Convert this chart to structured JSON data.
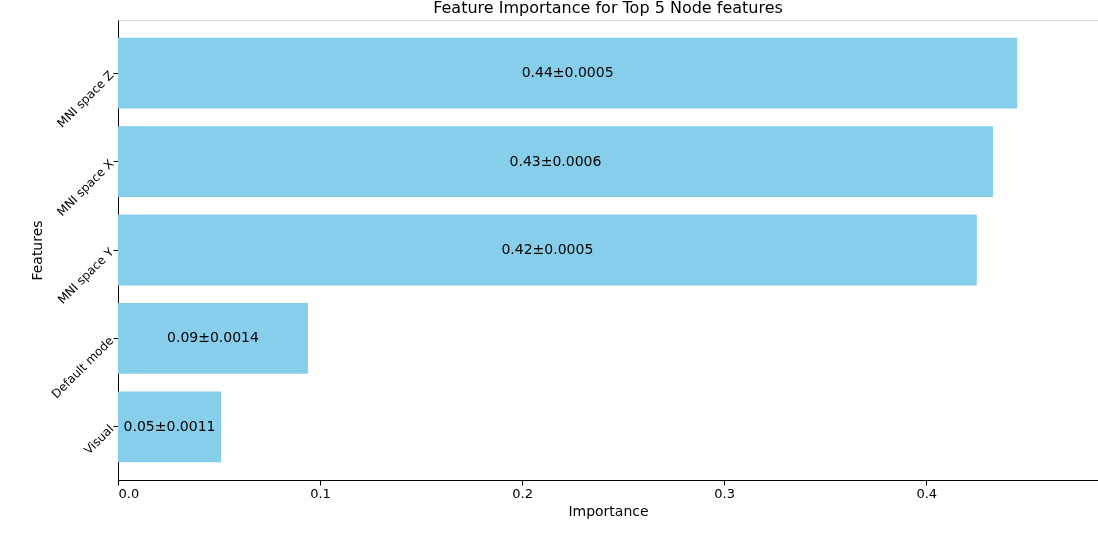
{
  "chart_data": {
    "type": "bar",
    "orientation": "horizontal",
    "title": "Feature Importance for Top 5 Node features",
    "xlabel": "Importance",
    "ylabel": "Features",
    "categories": [
      "MNI space Z",
      "MNI space X",
      "MNI space Y",
      "Default mode",
      "Visual"
    ],
    "values": [
      0.445,
      0.433,
      0.425,
      0.094,
      0.051
    ],
    "value_labels": [
      "0.44±0.0005",
      "0.43±0.0006",
      "0.42±0.0005",
      "0.09±0.0014",
      "0.05±0.0011"
    ],
    "color": "#87ceeb",
    "xlim": [
      0,
      0.485
    ],
    "xticks": [
      {
        "value": 0,
        "label": "0.0"
      },
      0.1,
      0.2,
      0.3,
      0.4
    ],
    "grid": false
  }
}
